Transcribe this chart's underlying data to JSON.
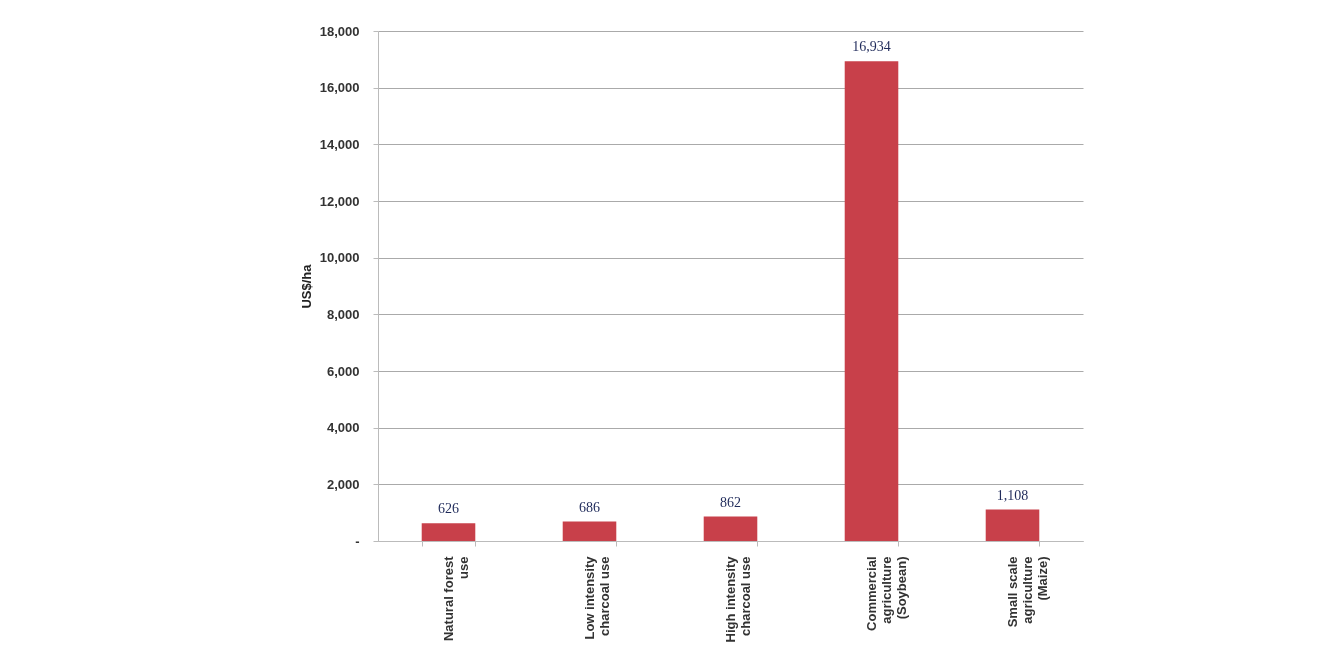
{
  "chart_data": {
    "type": "bar",
    "ylabel": "US$/ha",
    "categories": [
      "Natural forest use",
      "Low intensity charcoal use",
      "High intensity charcoal use",
      "Commercial agriculture (Soybean)",
      "Small scale agriculture (Maize)"
    ],
    "values": [
      626,
      686,
      862,
      16934,
      1108
    ],
    "value_labels": [
      "626",
      "686",
      "862",
      "16,934",
      "1,108"
    ],
    "color": "#c8404a",
    "ylim": [
      0,
      18000
    ],
    "yticks": [
      {
        "value": 0,
        "label": "-"
      },
      {
        "value": 2000,
        "label": "2,000"
      },
      {
        "value": 4000,
        "label": "4,000"
      },
      {
        "value": 6000,
        "label": "6,000"
      },
      {
        "value": 8000,
        "label": "8,000"
      },
      {
        "value": 10000,
        "label": "10,000"
      },
      {
        "value": 12000,
        "label": "12,000"
      },
      {
        "value": 14000,
        "label": "14,000"
      },
      {
        "value": 16000,
        "label": "16,000"
      },
      {
        "value": 18000,
        "label": "18,000"
      }
    ],
    "grid": "y"
  }
}
